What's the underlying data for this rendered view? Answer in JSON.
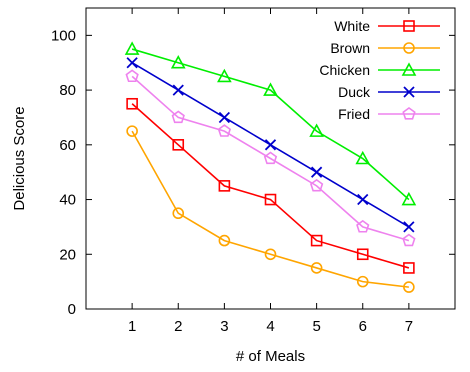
{
  "chart_data": {
    "type": "line",
    "xlabel": "# of Meals",
    "ylabel": "Delicious Score",
    "x": [
      1,
      2,
      3,
      4,
      5,
      6,
      7
    ],
    "xlim": [
      0,
      8
    ],
    "ylim": [
      0,
      110
    ],
    "xticks": [
      "1",
      "2",
      "3",
      "4",
      "5",
      "6",
      "7"
    ],
    "yticks": [
      "0",
      "20",
      "40",
      "60",
      "80",
      "100"
    ],
    "grid": false,
    "legend_position": "top-right",
    "series": [
      {
        "name": "White",
        "color": "#ff0000",
        "marker": "square",
        "values": [
          75,
          60,
          45,
          40,
          25,
          20,
          15
        ]
      },
      {
        "name": "Brown",
        "color": "#ffa500",
        "marker": "circle",
        "values": [
          65,
          35,
          25,
          20,
          15,
          10,
          8
        ]
      },
      {
        "name": "Chicken",
        "color": "#00ee00",
        "marker": "triangle",
        "values": [
          95,
          90,
          85,
          80,
          65,
          55,
          40
        ]
      },
      {
        "name": "Duck",
        "color": "#0000cc",
        "marker": "x",
        "values": [
          90,
          80,
          70,
          60,
          50,
          40,
          30
        ]
      },
      {
        "name": "Fried",
        "color": "#ee82ee",
        "marker": "pentagon",
        "values": [
          85,
          70,
          65,
          55,
          45,
          30,
          25
        ]
      }
    ]
  }
}
